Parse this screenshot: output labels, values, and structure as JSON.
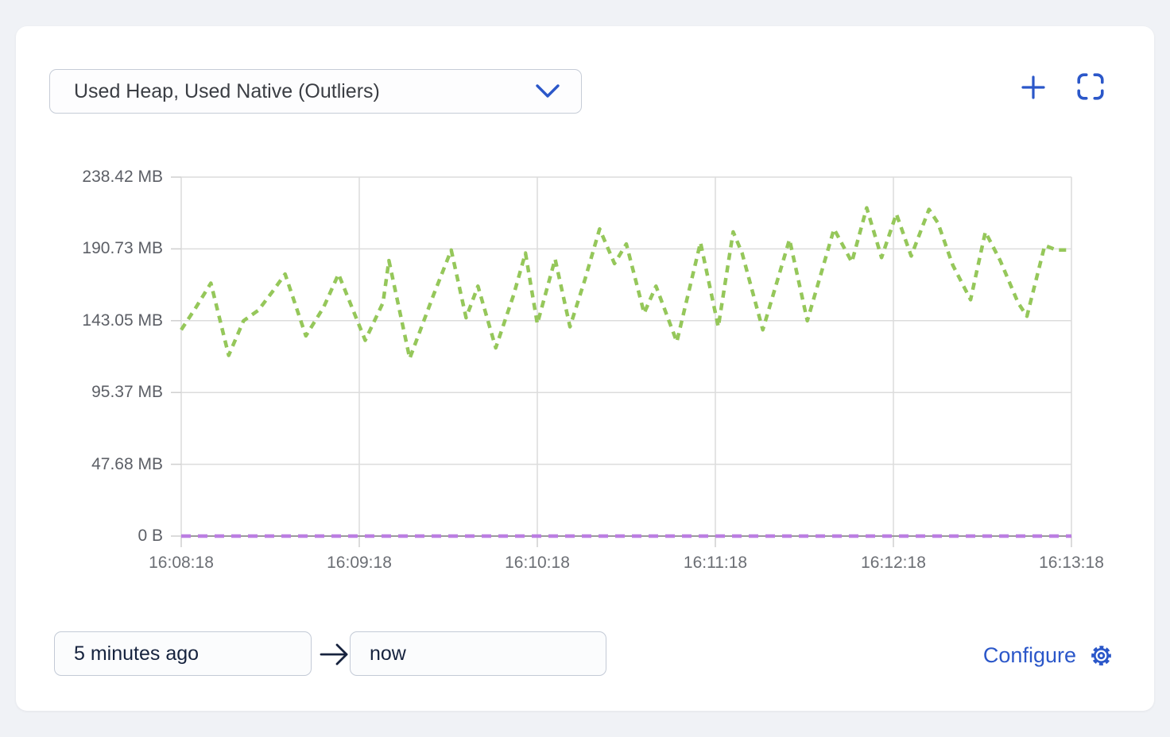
{
  "panel": {
    "metric_selector": {
      "value": "Used Heap, Used Native (Outliers)"
    },
    "toolbar": {
      "add_icon": "plus-icon",
      "fullscreen_icon": "fullscreen-expand-icon"
    },
    "time_range": {
      "from": "5 minutes ago",
      "to": "now",
      "arrow_icon": "arrow-right-icon"
    },
    "configure": {
      "label": "Configure",
      "icon": "gear-icon"
    }
  },
  "colors": {
    "accent_blue": "#2b57c9",
    "heap_green": "#95c75a",
    "native_purple": "#bb7ee2",
    "gridline": "#dcdcdc",
    "axis_line": "#9a9a9a",
    "tick": "#cfcfcf",
    "page_background": "#f0f2f6",
    "card_background": "#ffffff"
  },
  "chart_data": {
    "type": "line",
    "title": "",
    "xlabel": "",
    "ylabel": "",
    "grid": true,
    "legend": "none",
    "x_axis": {
      "labels": [
        "16:08:18",
        "16:09:18",
        "16:10:18",
        "16:11:18",
        "16:12:18",
        "16:13:18"
      ],
      "range_seconds": [
        0,
        300
      ]
    },
    "y_axis": {
      "labels": [
        "238.42 MB",
        "190.73 MB",
        "143.05 MB",
        "95.37 MB",
        "47.68 MB",
        "0 B"
      ],
      "min_mb": 0,
      "max_mb": 238.42
    },
    "series": [
      {
        "name": "Used Heap (Outliers)",
        "unit": "MB",
        "color": "#95c75a",
        "style": "dashed",
        "dash": "9 7",
        "points": [
          [
            0,
            137
          ],
          [
            5,
            152
          ],
          [
            10,
            168
          ],
          [
            16,
            120
          ],
          [
            21,
            143
          ],
          [
            26,
            150
          ],
          [
            31,
            163
          ],
          [
            35,
            174
          ],
          [
            42,
            133
          ],
          [
            48,
            152
          ],
          [
            53,
            174
          ],
          [
            62,
            130
          ],
          [
            68,
            155
          ],
          [
            70,
            183
          ],
          [
            77,
            118
          ],
          [
            85,
            160
          ],
          [
            91,
            190
          ],
          [
            96,
            145
          ],
          [
            100,
            166
          ],
          [
            106,
            125
          ],
          [
            112,
            160
          ],
          [
            116,
            188
          ],
          [
            120,
            141
          ],
          [
            126,
            184
          ],
          [
            131,
            139
          ],
          [
            136,
            170
          ],
          [
            141,
            204
          ],
          [
            146,
            181
          ],
          [
            150,
            194
          ],
          [
            156,
            148
          ],
          [
            160,
            166
          ],
          [
            167,
            129
          ],
          [
            175,
            195
          ],
          [
            181,
            139
          ],
          [
            186,
            202
          ],
          [
            189,
            188
          ],
          [
            196,
            137
          ],
          [
            205,
            197
          ],
          [
            211,
            143
          ],
          [
            220,
            204
          ],
          [
            226,
            182
          ],
          [
            231,
            218
          ],
          [
            236,
            185
          ],
          [
            241,
            214
          ],
          [
            246,
            186
          ],
          [
            252,
            217
          ],
          [
            255,
            208
          ],
          [
            260,
            180
          ],
          [
            266,
            157
          ],
          [
            271,
            202
          ],
          [
            276,
            183
          ],
          [
            282,
            155
          ],
          [
            285,
            146
          ],
          [
            291,
            193
          ],
          [
            295,
            190
          ],
          [
            300,
            190
          ]
        ]
      },
      {
        "name": "Used Native (Outliers)",
        "unit": "B",
        "color": "#bb7ee2",
        "style": "dashed",
        "dash": "12 9",
        "points": [
          [
            0,
            0
          ],
          [
            300,
            0
          ]
        ]
      }
    ]
  }
}
